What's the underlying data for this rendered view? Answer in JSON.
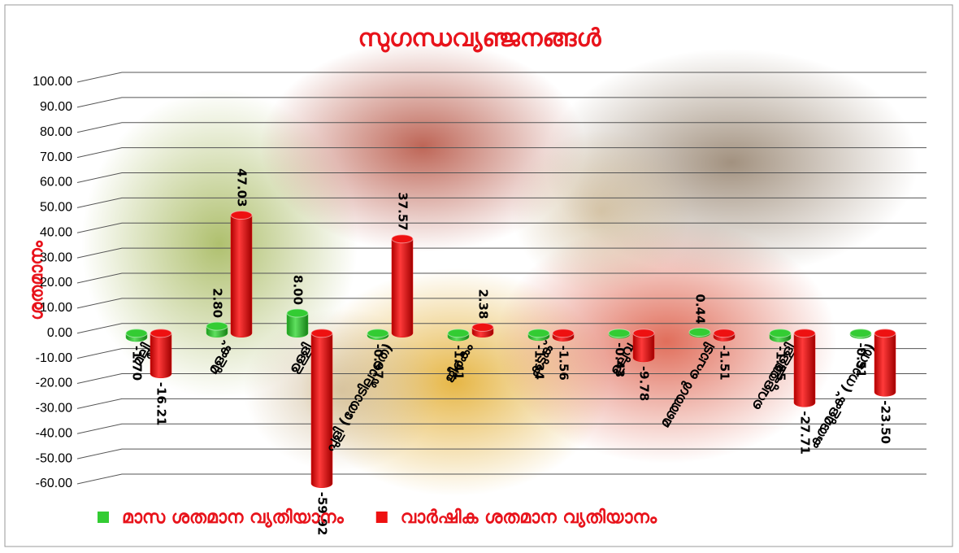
{
  "chart_data": {
    "type": "bar3d",
    "title": "സുഗന്ധവ്യഞ്ജനങ്ങൾ",
    "y_label": "ശതമാനം",
    "categories": [
      "മല്ലി",
      "മുളക്",
      "ഉള്ളി",
      "പുളി (തോടില്ലാതെ)",
      "ജീരകം",
      "കടുക്",
      "ഉലുവ",
      "മഞ്ഞൾ പൊടി",
      "വെളുത്തുള്ളി",
      "കുരുമുളക് (നാടൻ)"
    ],
    "series": [
      {
        "name": "മാസ ശതമാന വ്യതിയാനം",
        "color": "#33cc33",
        "values": [
          -1.7,
          2.8,
          8,
          -0.97,
          -1.41,
          -1.34,
          -0.43,
          0.44,
          -1.85,
          -0.51
        ],
        "value_labels": [
          "-1.70",
          "2.80",
          "8.00",
          "-0.97",
          "-1.41",
          "-1.34",
          "-0.43",
          "0.44",
          "-1.85",
          "-0.51"
        ]
      },
      {
        "name": "വാർഷിക ശതമാന വ്യതിയാനം",
        "color": "#ee1111",
        "values": [
          -16.21,
          47.03,
          -59.92,
          37.57,
          2.38,
          -1.56,
          -9.78,
          -1.51,
          -27.71,
          -23.5
        ],
        "value_labels": [
          "-16.21",
          "47.03",
          "-59.92",
          "37.57",
          "2.38",
          "-1.56",
          "-9.78",
          "-1.51",
          "-27.71",
          "-23.50"
        ]
      }
    ],
    "ylim": [
      -60,
      100
    ],
    "yticks": [
      {
        "value": -60,
        "label": "-60.00"
      },
      {
        "value": -50,
        "label": "-50.00"
      },
      {
        "value": -40,
        "label": "-40.00"
      },
      {
        "value": -30,
        "label": "-30.00"
      },
      {
        "value": -20,
        "label": "-20.00"
      },
      {
        "value": -10,
        "label": "-10.00"
      },
      {
        "value": 0,
        "label": "0.00"
      },
      {
        "value": 10,
        "label": "10.00"
      },
      {
        "value": 20,
        "label": "20.00"
      },
      {
        "value": 30,
        "label": "30.00"
      },
      {
        "value": 40,
        "label": "40.00"
      },
      {
        "value": 50,
        "label": "50.00"
      },
      {
        "value": 60,
        "label": "60.00"
      },
      {
        "value": 70,
        "label": "70.00"
      },
      {
        "value": 80,
        "label": "80.00"
      },
      {
        "value": 90,
        "label": "90.00"
      },
      {
        "value": 100,
        "label": "100.00"
      }
    ],
    "grid": true,
    "legend": "bottom"
  }
}
